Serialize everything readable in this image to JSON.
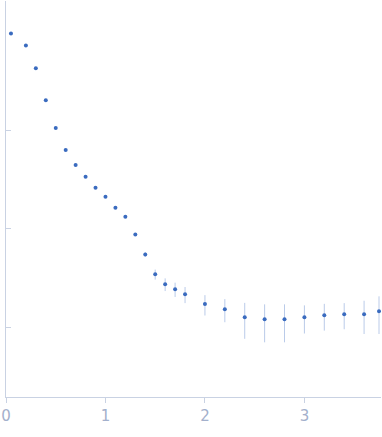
{
  "chart_data": {
    "type": "scatter",
    "log": "y",
    "tick_labels": "x",
    "color": "#3a6bbf",
    "marker": "circle",
    "x": [
      0.05,
      0.2,
      0.3,
      0.4,
      0.5,
      0.6,
      0.7,
      0.8,
      0.9,
      1.0,
      1.1,
      1.2,
      1.3,
      1.4,
      1.5,
      1.6,
      1.7,
      1.8,
      2.0,
      2.2,
      2.4,
      2.6,
      2.8,
      3.0,
      3.2,
      3.4,
      3.6,
      3.75
    ],
    "values": [
      0.955,
      0.723,
      0.423,
      0.201,
      0.105,
      0.0628,
      0.0442,
      0.0335,
      0.0259,
      0.021,
      0.0163,
      0.0132,
      0.0087,
      0.00546,
      0.00343,
      0.00272,
      0.00242,
      0.00215,
      0.00171,
      0.00152,
      0.00126,
      0.0012,
      0.0012,
      0.00126,
      0.00132,
      0.00135,
      0.00135,
      0.00145
    ],
    "errors": [
      0.005,
      0.004,
      0.003,
      0.002,
      0.001,
      0.0006,
      0.0005,
      0.0004,
      0.0004,
      0.0004,
      0.0004,
      0.0004,
      0.0003,
      0.0003,
      0.0004,
      0.0004,
      0.0004,
      0.0004,
      0.0004,
      0.0004,
      0.0005,
      0.0005,
      0.0005,
      0.0004,
      0.0004,
      0.0004,
      0.0005,
      0.0006
    ],
    "xlim": [
      0,
      3.77
    ],
    "xticks": [
      0,
      1,
      2,
      3
    ],
    "ylim": [
      0.000195,
      2.04
    ],
    "yticks": [
      0.001,
      0.01,
      0.1
    ],
    "grid": false
  }
}
